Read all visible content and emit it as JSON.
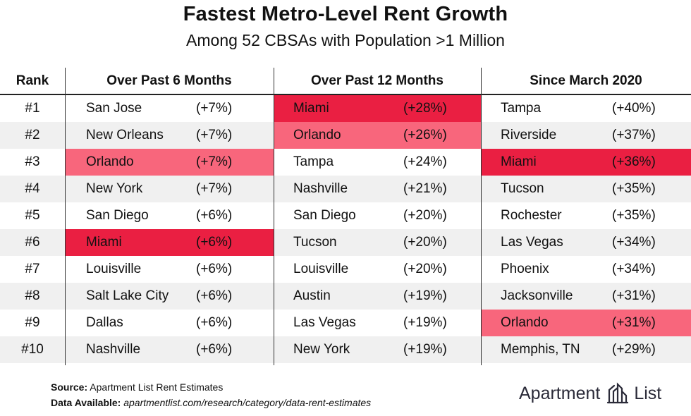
{
  "header": {
    "title": "Fastest Metro-Level Rent Growth",
    "subtitle": "Among 52 CBSAs with Population >1 Million"
  },
  "chart_data": {
    "type": "table",
    "columns": [
      "Rank",
      "Over Past 6 Months",
      "Over Past 12 Months",
      "Since March 2020"
    ],
    "rows": [
      {
        "rank": "#1",
        "six_months": {
          "city": "San Jose",
          "pct": "(+7%)"
        },
        "twelve_months": {
          "city": "Miami",
          "pct": "(+28%)"
        },
        "since_march_2020": {
          "city": "Tampa",
          "pct": "(+40%)"
        }
      },
      {
        "rank": "#2",
        "six_months": {
          "city": "New Orleans",
          "pct": "(+7%)"
        },
        "twelve_months": {
          "city": "Orlando",
          "pct": "(+26%)"
        },
        "since_march_2020": {
          "city": "Riverside",
          "pct": "(+37%)"
        }
      },
      {
        "rank": "#3",
        "six_months": {
          "city": "Orlando",
          "pct": "(+7%)"
        },
        "twelve_months": {
          "city": "Tampa",
          "pct": "(+24%)"
        },
        "since_march_2020": {
          "city": "Miami",
          "pct": "(+36%)"
        }
      },
      {
        "rank": "#4",
        "six_months": {
          "city": "New York",
          "pct": "(+7%)"
        },
        "twelve_months": {
          "city": "Nashville",
          "pct": "(+21%)"
        },
        "since_march_2020": {
          "city": "Tucson",
          "pct": "(+35%)"
        }
      },
      {
        "rank": "#5",
        "six_months": {
          "city": "San Diego",
          "pct": "(+6%)"
        },
        "twelve_months": {
          "city": "San Diego",
          "pct": "(+20%)"
        },
        "since_march_2020": {
          "city": "Rochester",
          "pct": "(+35%)"
        }
      },
      {
        "rank": "#6",
        "six_months": {
          "city": "Miami",
          "pct": "(+6%)"
        },
        "twelve_months": {
          "city": "Tucson",
          "pct": "(+20%)"
        },
        "since_march_2020": {
          "city": "Las Vegas",
          "pct": "(+34%)"
        }
      },
      {
        "rank": "#7",
        "six_months": {
          "city": "Louisville",
          "pct": "(+6%)"
        },
        "twelve_months": {
          "city": "Louisville",
          "pct": "(+20%)"
        },
        "since_march_2020": {
          "city": "Phoenix",
          "pct": "(+34%)"
        }
      },
      {
        "rank": "#8",
        "six_months": {
          "city": "Salt Lake City",
          "pct": "(+6%)"
        },
        "twelve_months": {
          "city": "Austin",
          "pct": "(+19%)"
        },
        "since_march_2020": {
          "city": "Jacksonville",
          "pct": "(+31%)"
        }
      },
      {
        "rank": "#9",
        "six_months": {
          "city": "Dallas",
          "pct": "(+6%)"
        },
        "twelve_months": {
          "city": "Las Vegas",
          "pct": "(+19%)"
        },
        "since_march_2020": {
          "city": "Orlando",
          "pct": "(+31%)"
        }
      },
      {
        "rank": "#10",
        "six_months": {
          "city": "Nashville",
          "pct": "(+6%)"
        },
        "twelve_months": {
          "city": "New York",
          "pct": "(+19%)"
        },
        "since_march_2020": {
          "city": "Memphis, TN",
          "pct": "(+29%)"
        }
      }
    ],
    "highlights": {
      "Miami": "#ea1f42",
      "Orlando": "#f8667c"
    },
    "row_shading": "#f0f0f0"
  },
  "footer": {
    "source_label": "Source:",
    "source_text": "Apartment List Rent Estimates",
    "data_label": "Data Available:",
    "data_text": "apartmentlist.com/research/category/data-rent-estimates"
  },
  "logo": {
    "text": "Apartment",
    "text2": "List",
    "icon": "apartment-list-logo-icon"
  }
}
